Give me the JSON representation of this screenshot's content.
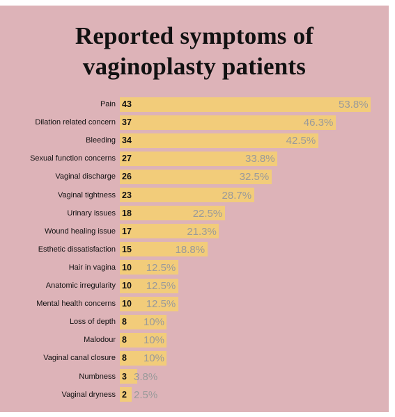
{
  "chart_data": {
    "type": "bar",
    "orientation": "horizontal",
    "title_lines": [
      "Reported symptoms of",
      "vaginoplasty patients"
    ],
    "categories": [
      "Pain",
      "Dilation related concern",
      "Bleeding",
      "Sexual function concerns",
      "Vaginal discharge",
      "Vaginal tightness",
      "Urinary issues",
      "Wound healing issue",
      "Esthetic dissatisfaction",
      "Hair in vagina",
      "Anatomic irregularity",
      "Mental health concerns",
      "Loss of depth",
      "Malodour",
      "Vaginal canal closure",
      "Numbness",
      "Vaginal dryness"
    ],
    "values": [
      43,
      37,
      34,
      27,
      26,
      23,
      18,
      17,
      15,
      10,
      10,
      10,
      8,
      8,
      8,
      3,
      2
    ],
    "percent_labels": [
      "53.8%",
      "46.3%",
      "42.5%",
      "33.8%",
      "32.5%",
      "28.7%",
      "22.5%",
      "21.3%",
      "18.8%",
      "12.5%",
      "12.5%",
      "12.5%",
      "10%",
      "10%",
      "10%",
      "3.8%",
      "2.5%"
    ],
    "colors": {
      "background": "#ddb3b8",
      "bar": "#f2cc7a",
      "percent_text": "#9a9a9a",
      "label_text": "#111111"
    }
  }
}
